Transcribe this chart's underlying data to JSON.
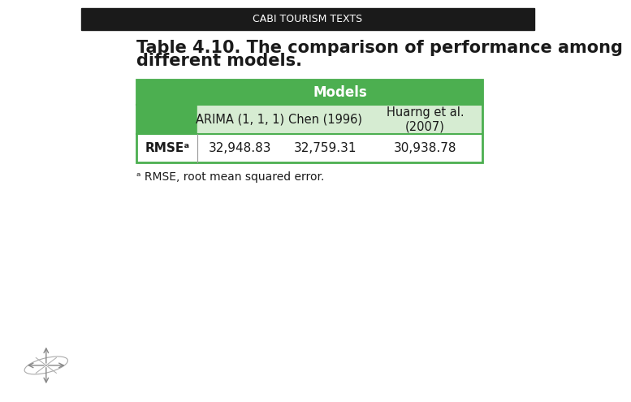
{
  "header_text": "CABI TOURISM TEXTS",
  "title_line1": "Table 4.10. The comparison of performance among",
  "title_line2": "different models.",
  "header_bg_color": "#1a1a1a",
  "header_text_color": "#ffffff",
  "bg_color": "#ffffff",
  "table_header_bg": "#4caf50",
  "table_header_text": "#ffffff",
  "table_subheader_bg": "#d6ecd2",
  "table_row_bg": "#ffffff",
  "table_border_color": "#4caf50",
  "models_label": "Models",
  "col_headers": [
    "",
    "ARIMA (1, 1, 1)",
    "Chen (1996)",
    "Huarng et al.\n(2007)"
  ],
  "row_label": "RMSEᵃ",
  "row_values": [
    "32,948.83",
    "32,759.31",
    "30,938.78"
  ],
  "footnote": "ᵃ RMSE, root mean squared error.",
  "title_fontsize": 15,
  "header_fontsize": 9,
  "table_fontsize": 11
}
